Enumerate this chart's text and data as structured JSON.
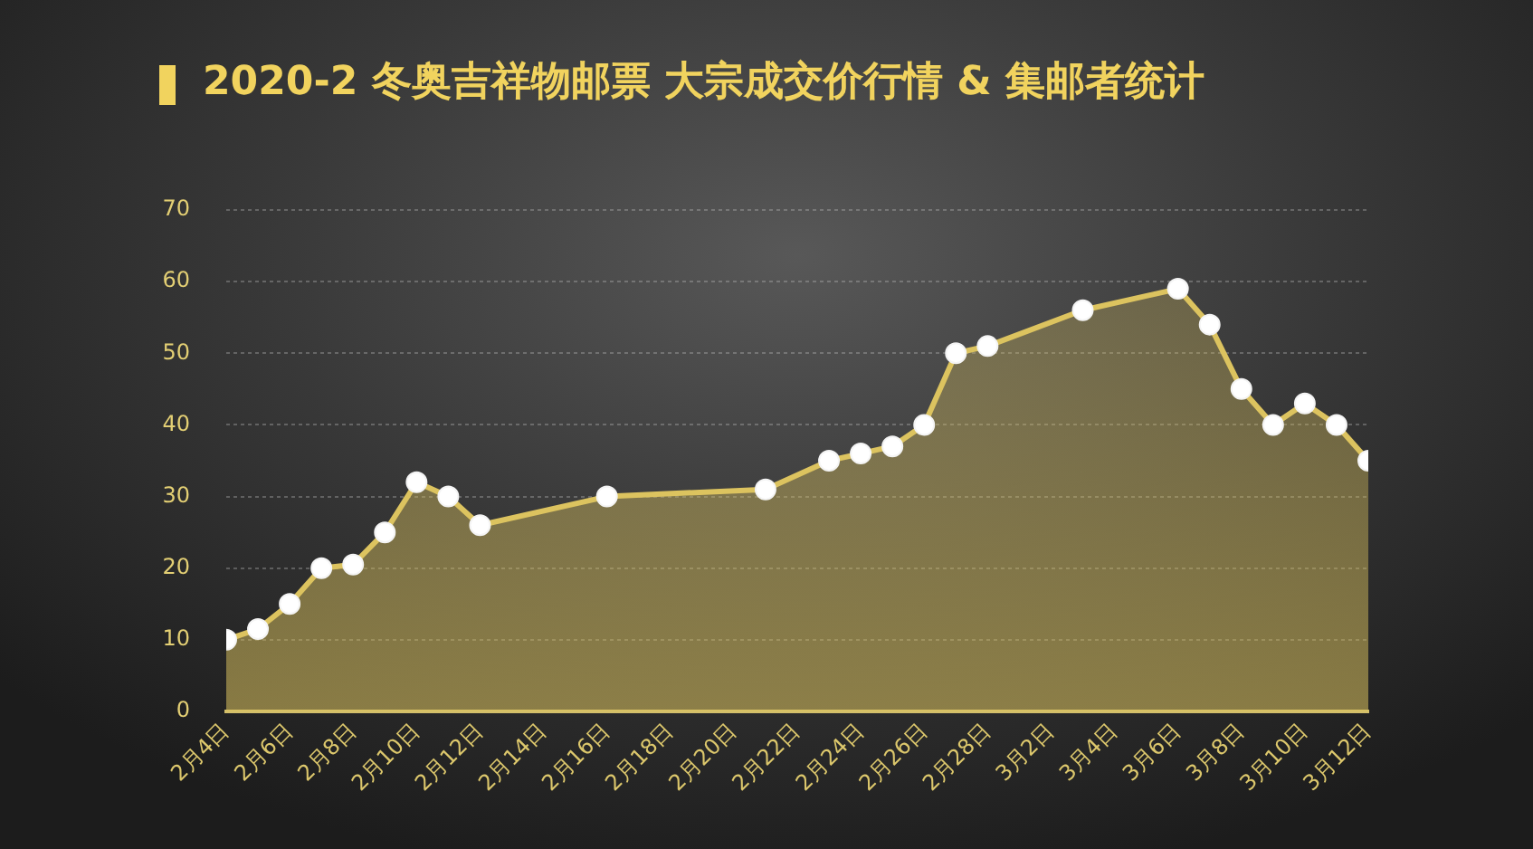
{
  "chart_data": {
    "type": "area",
    "title": "2020-2 冬奥吉祥物邮票 大宗成交价行情 & 集邮者统计",
    "x": [
      "--02-04",
      "--02-05",
      "--02-06",
      "--02-07",
      "--02-08",
      "--02-09",
      "--02-10",
      "--02-11",
      "--02-12",
      "--02-16",
      "--02-21",
      "--02-23",
      "--02-24",
      "--02-25",
      "--02-26",
      "--02-27",
      "--02-28",
      "--03-03",
      "--03-06",
      "--03-07",
      "--03-08",
      "--03-09",
      "--03-10",
      "--03-11",
      "--03-12"
    ],
    "values": [
      10,
      11.5,
      15,
      20,
      20.5,
      25,
      32,
      30,
      26,
      30,
      31,
      35,
      36,
      37,
      40,
      50,
      51,
      56,
      59,
      54,
      45,
      40,
      43,
      40,
      35
    ],
    "color": "#dcc35f",
    "marker": "circle",
    "grid": "y",
    "xlim": [
      "--02-04",
      "--03-12"
    ],
    "xticks": [
      {
        "value": "--02-04",
        "label": "2月4日"
      },
      {
        "value": "--02-06",
        "label": "2月6日"
      },
      {
        "value": "--02-08",
        "label": "2月8日"
      },
      {
        "value": "--02-10",
        "label": "2月10日"
      },
      {
        "value": "--02-12",
        "label": "2月12日"
      },
      {
        "value": "--02-14",
        "label": "2月14日"
      },
      {
        "value": "--02-16",
        "label": "2月16日"
      },
      {
        "value": "--02-18",
        "label": "2月18日"
      },
      {
        "value": "--02-20",
        "label": "2月20日"
      },
      {
        "value": "--02-22",
        "label": "2月22日"
      },
      {
        "value": "--02-24",
        "label": "2月24日"
      },
      {
        "value": "--02-26",
        "label": "2月26日"
      },
      {
        "value": "--02-28",
        "label": "2月28日"
      },
      {
        "value": "--03-02",
        "label": "3月2日"
      },
      {
        "value": "--03-04",
        "label": "3月4日"
      },
      {
        "value": "--03-06",
        "label": "3月6日"
      },
      {
        "value": "--03-08",
        "label": "3月8日"
      },
      {
        "value": "--03-10",
        "label": "3月10日"
      },
      {
        "value": "--03-12",
        "label": "3月12日"
      }
    ],
    "ylim": [
      0,
      70
    ],
    "yticks": [
      0,
      10,
      20,
      30,
      40,
      50,
      60,
      70
    ]
  }
}
